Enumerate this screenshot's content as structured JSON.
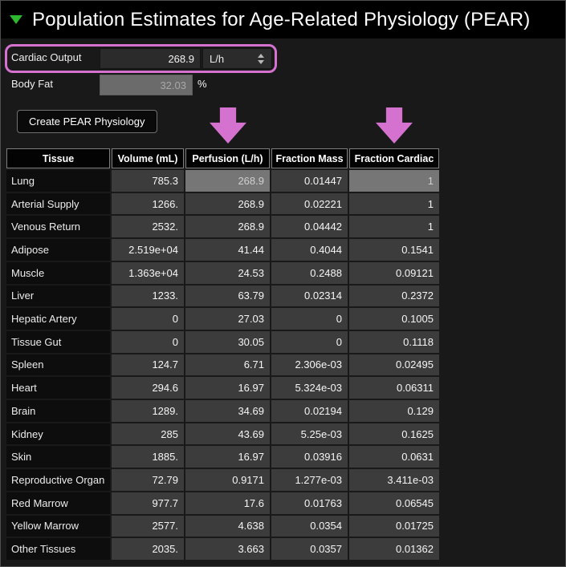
{
  "panel": {
    "title": "Population Estimates for Age-Related Physiology (PEAR)",
    "collapse_state": "expanded"
  },
  "colors": {
    "annotation_pink": "#d572cf",
    "collapse_green": "#2eb82e"
  },
  "form": {
    "cardiac_output": {
      "label": "Cardiac Output",
      "value": "268.9",
      "unit": "L/h"
    },
    "body_fat": {
      "label": "Body Fat",
      "value": "32.03",
      "unit": "%"
    },
    "create_button_label": "Create PEAR Physiology"
  },
  "annotations": {
    "ring_target": "Cardiac Output row",
    "arrow_targets": [
      "Perfusion (L/h)",
      "Fraction Cardiac"
    ]
  },
  "table": {
    "columns": [
      "Tissue",
      "Volume (mL)",
      "Perfusion (L/h)",
      "Fraction Mass",
      "Fraction Cardiac"
    ],
    "rows": [
      [
        "Lung",
        "785.3",
        "268.9",
        "0.01447",
        "1"
      ],
      [
        "Arterial Supply",
        "1266.",
        "268.9",
        "0.02221",
        "1"
      ],
      [
        "Venous Return",
        "2532.",
        "268.9",
        "0.04442",
        "1"
      ],
      [
        "Adipose",
        "2.519e+04",
        "41.44",
        "0.4044",
        "0.1541"
      ],
      [
        "Muscle",
        "1.363e+04",
        "24.53",
        "0.2488",
        "0.09121"
      ],
      [
        "Liver",
        "1233.",
        "63.79",
        "0.02314",
        "0.2372"
      ],
      [
        "Hepatic Artery",
        "0",
        "27.03",
        "0",
        "0.1005"
      ],
      [
        "Tissue Gut",
        "0",
        "30.05",
        "0",
        "0.1118"
      ],
      [
        "Spleen",
        "124.7",
        "6.71",
        "2.306e-03",
        "0.02495"
      ],
      [
        "Heart",
        "294.6",
        "16.97",
        "5.324e-03",
        "0.06311"
      ],
      [
        "Brain",
        "1289.",
        "34.69",
        "0.02194",
        "0.129"
      ],
      [
        "Kidney",
        "285",
        "43.69",
        "5.25e-03",
        "0.1625"
      ],
      [
        "Skin",
        "1885.",
        "16.97",
        "0.03916",
        "0.0631"
      ],
      [
        "Reproductive Organ",
        "72.79",
        "0.9171",
        "1.277e-03",
        "3.411e-03"
      ],
      [
        "Red Marrow",
        "977.7",
        "17.6",
        "0.01763",
        "0.06545"
      ],
      [
        "Yellow Marrow",
        "2577.",
        "4.638",
        "0.0354",
        "0.01725"
      ],
      [
        "Other Tissues",
        "2035.",
        "3.663",
        "0.0357",
        "0.01362"
      ]
    ],
    "highlighted_cells": [
      [
        0,
        2
      ],
      [
        0,
        4
      ]
    ]
  }
}
